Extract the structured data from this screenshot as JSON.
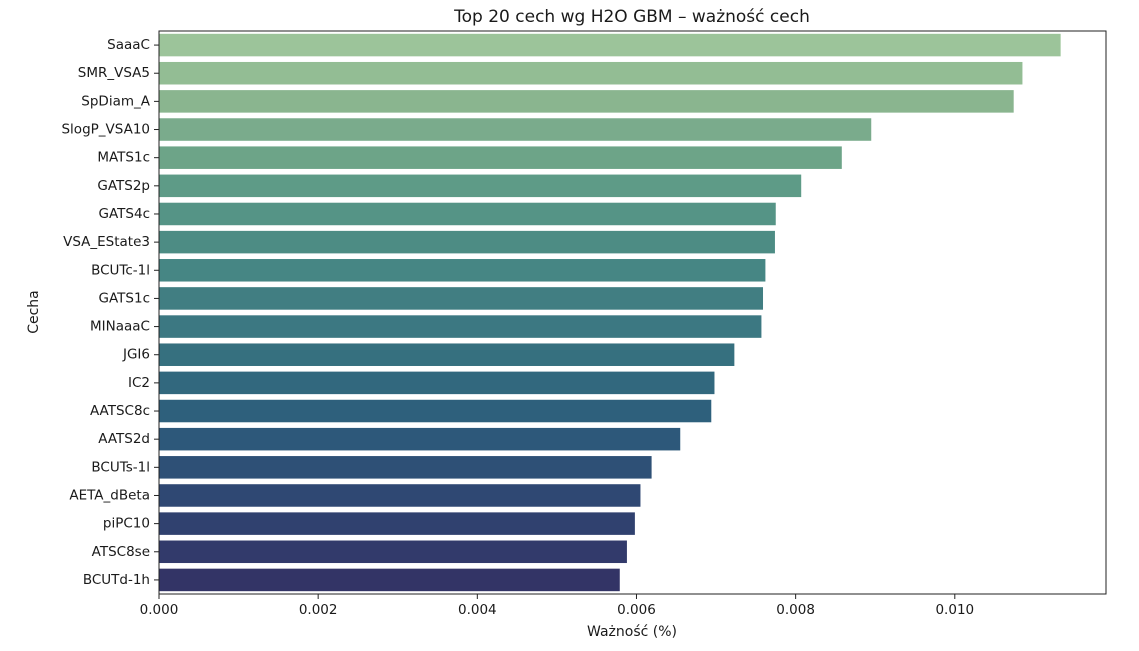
{
  "chart_data": {
    "type": "bar",
    "orientation": "horizontal",
    "title": "Top 20 cech wg H2O GBM – ważność cech",
    "xlabel": "Ważność (%)",
    "ylabel": "Cecha",
    "xlim": [
      0,
      0.0119
    ],
    "x_ticks": [
      "0.000",
      "0.002",
      "0.004",
      "0.006",
      "0.008",
      "0.010"
    ],
    "categories": [
      "SaaaC",
      "SMR_VSA5",
      "SpDiam_A",
      "SlogP_VSA10",
      "MATS1c",
      "GATS2p",
      "GATS4c",
      "VSA_EState3",
      "BCUTc-1l",
      "GATS1c",
      "MINaaaC",
      "JGI6",
      "IC2",
      "AATSC8c",
      "AATS2d",
      "BCUTs-1l",
      "AETA_dBeta",
      "piPC10",
      "ATSC8se",
      "BCUTd-1h"
    ],
    "values": [
      0.01133,
      0.01085,
      0.01074,
      0.00895,
      0.00858,
      0.00807,
      0.00775,
      0.00774,
      0.00762,
      0.00759,
      0.00757,
      0.00723,
      0.00698,
      0.00694,
      0.00655,
      0.00619,
      0.00605,
      0.00598,
      0.00588,
      0.00579
    ],
    "colors": [
      "#9cc49a",
      "#93bd94",
      "#8ab58f",
      "#7aab8c",
      "#6da488",
      "#5e9b87",
      "#559486",
      "#4d8c84",
      "#468684",
      "#417e82",
      "#3c7882",
      "#36707f",
      "#32687e",
      "#2e607c",
      "#2d587a",
      "#2e5076",
      "#2f4873",
      "#30416f",
      "#323a6b",
      "#333466"
    ],
    "grid": false,
    "legend": "none"
  }
}
